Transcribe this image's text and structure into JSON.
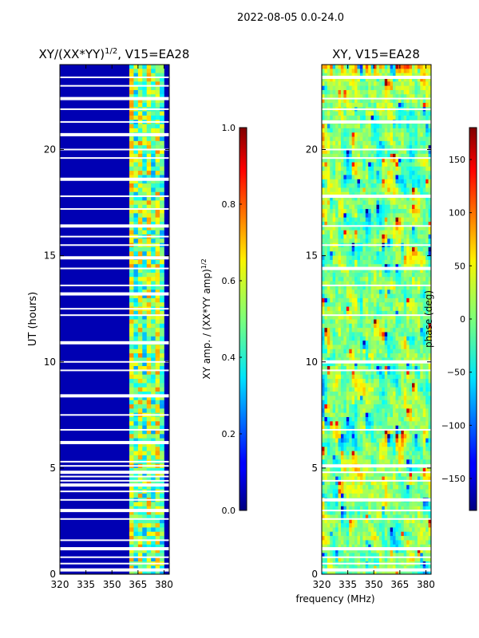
{
  "figure": {
    "suptitle": "2022-08-05 0.0-24.0",
    "xlabel": "frequency (MHz)"
  },
  "chart_data": [
    {
      "type": "heatmap",
      "title": "XY/(XX*YY)",
      "title_superscript": "1/2",
      "title_suffix": ", V15=EA28",
      "ylabel": "UT (hours)",
      "x_ticks": [
        "320",
        "335",
        "350",
        "365",
        "380"
      ],
      "x_tick_values": [
        320,
        335,
        350,
        365,
        380
      ],
      "y_ticks": [
        "0",
        "5",
        "10",
        "15",
        "20"
      ],
      "y_tick_values": [
        0,
        5,
        10,
        15,
        20
      ],
      "xlim": [
        320,
        383
      ],
      "ylim": [
        0,
        24
      ],
      "colorbar": {
        "label": "XY amp. / (XX*YY amp)",
        "label_superscript": "1/2",
        "ticks": [
          "0.0",
          "0.2",
          "0.4",
          "0.6",
          "0.8",
          "1.0"
        ],
        "tick_values": [
          0.0,
          0.2,
          0.4,
          0.6,
          0.8,
          1.0
        ],
        "range": [
          0,
          1
        ]
      },
      "background_value": 0.05,
      "active_band_mhz": [
        360,
        380
      ],
      "active_band_level": 0.45,
      "flagged_hours": [
        0.2,
        0.5,
        0.8,
        1.2,
        1.6,
        2.6,
        3.0,
        3.5,
        3.9,
        4.2,
        4.4,
        4.6,
        4.8,
        5.1,
        5.3,
        6.2,
        6.8,
        7.5,
        8.4,
        9.6,
        10.0,
        10.9,
        12.2,
        12.5,
        13.2,
        13.6,
        14.4,
        14.9,
        15.5,
        15.9,
        16.4,
        17.2,
        17.8,
        18.6,
        19.6,
        20.0,
        20.7,
        21.3,
        21.9,
        22.4,
        23.0,
        23.4
      ]
    },
    {
      "type": "heatmap",
      "title": "XY, V15=EA28",
      "x_ticks": [
        "320",
        "335",
        "350",
        "365",
        "380"
      ],
      "x_tick_values": [
        320,
        335,
        350,
        365,
        380
      ],
      "y_ticks": [
        "0",
        "5",
        "10",
        "15",
        "20"
      ],
      "y_tick_values": [
        0,
        5,
        10,
        15,
        20
      ],
      "xlim": [
        320,
        383
      ],
      "ylim": [
        0,
        24
      ],
      "colorbar": {
        "label": "phase (deg)",
        "ticks": [
          "−150",
          "−100",
          "−50",
          "0",
          "50",
          "100",
          "150"
        ],
        "tick_values": [
          -150,
          -100,
          -50,
          0,
          50,
          100,
          150
        ],
        "range": [
          -180,
          180
        ]
      },
      "flagged_hours": [
        0.2,
        0.5,
        0.8,
        1.2,
        2.6,
        3.0,
        3.5,
        4.4,
        4.8,
        5.1,
        6.8,
        9.6,
        10.0,
        12.2,
        13.6,
        14.4,
        15.5,
        16.4,
        17.8,
        19.6,
        20.0,
        21.3,
        21.9,
        22.4,
        23.4
      ]
    }
  ]
}
